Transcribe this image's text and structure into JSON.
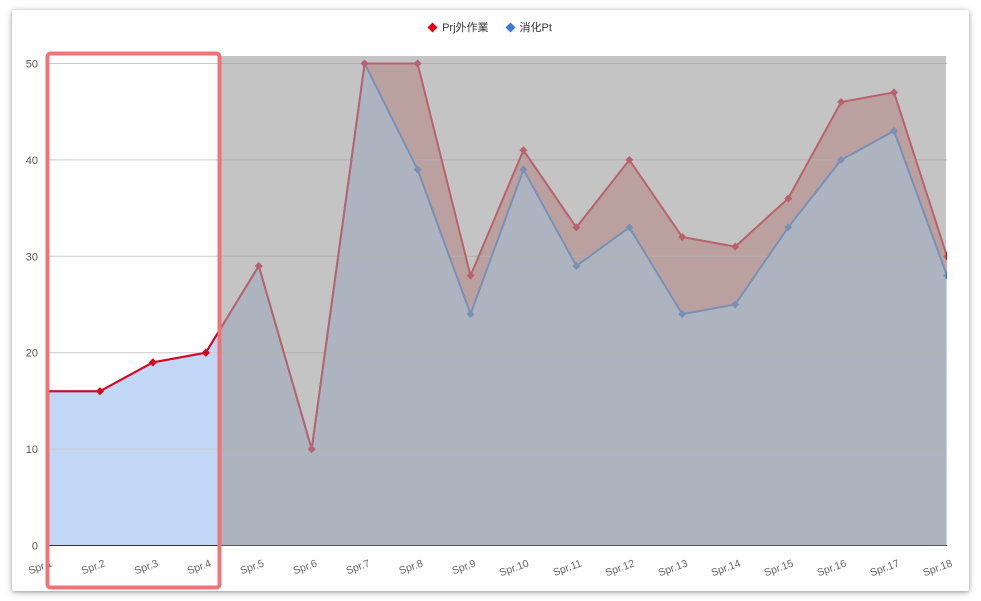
{
  "chart_data": {
    "type": "area",
    "categories": [
      "Spr.1",
      "Spr.2",
      "Spr.3",
      "Spr.4",
      "Spr.5",
      "Spr.6",
      "Spr.7",
      "Spr.8",
      "Spr.9",
      "Spr.10",
      "Spr.11",
      "Spr.12",
      "Spr.13",
      "Spr.14",
      "Spr.15",
      "Spr.16",
      "Spr.17",
      "Spr.18"
    ],
    "series": [
      {
        "name": "Prj外作業",
        "color": "#e0001a",
        "values": [
          16,
          16,
          19,
          20,
          29,
          10,
          50,
          50,
          28,
          41,
          33,
          40,
          32,
          31,
          36,
          46,
          47,
          30
        ]
      },
      {
        "name": "消化Pt",
        "color": "#3c78d8",
        "values": [
          16,
          16,
          19,
          20,
          29,
          10,
          50,
          39,
          24,
          39,
          29,
          33,
          24,
          25,
          33,
          40,
          43,
          28
        ]
      }
    ],
    "y_ticks": [
      "0",
      "10",
      "20",
      "30",
      "40",
      "50"
    ],
    "ylim": [
      0,
      50
    ],
    "grid": true,
    "legend_position": "top-center",
    "highlight": {
      "note": "Spr.1 – Spr.4 shown unshaded; Spr.5 – Spr.18 under a grey overlay",
      "box_color": "#f07378"
    },
    "colors": {
      "overlay": "#a0a0a0",
      "blue_fill": "#c2d6f5"
    }
  }
}
